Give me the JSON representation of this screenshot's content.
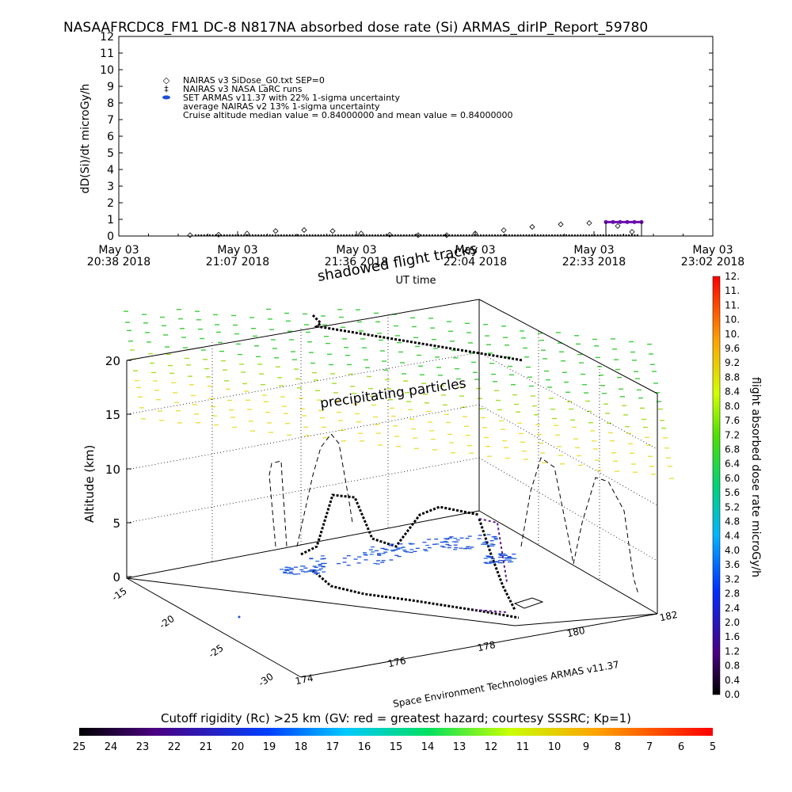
{
  "title": "NASAAFRCDC8_FM1 DC-8   N817NA absorbed dose rate (Si) ARMAS_dirIP_Report_59780",
  "chart_data": [
    {
      "type": "scatter",
      "title": "NASAAFRCDC8_FM1 DC-8   N817NA absorbed dose rate (Si) ARMAS_dirIP_Report_59780",
      "ylabel": "dD(Si)/dt microGy/h",
      "xlabel": "UT time",
      "ylim": [
        0,
        12
      ],
      "yticks": [
        "0",
        "1",
        "2",
        "3",
        "4",
        "5",
        "6",
        "7",
        "8",
        "9",
        "10",
        "11",
        "12"
      ],
      "xticks": [
        {
          "line1": "May 03",
          "line2": "20:38 2018"
        },
        {
          "line1": "May 03",
          "line2": "21:07 2018"
        },
        {
          "line1": "May 03",
          "line2": "21:36 2018"
        },
        {
          "line1": "May 03",
          "line2": "22:04 2018"
        },
        {
          "line1": "May 03",
          "line2": "22:33 2018"
        },
        {
          "line1": "May 03",
          "line2": "23:02 2018"
        }
      ],
      "legend": [
        {
          "symbol": "◇",
          "text": "NAIRAS v3 SiDose_G0.txt SEP=0"
        },
        {
          "symbol": "‡",
          "text": "NAIRAS v3 NASA LaRC runs"
        },
        {
          "symbol": "●",
          "text": "SET ARMAS v11.37 with 22% 1-sigma uncertainty"
        },
        {
          "symbol": "",
          "text": "average NAIRAS v2 13% 1-sigma uncertainty"
        },
        {
          "symbol": "",
          "text": "Cruise altitude median value = 0.84000000 and mean value = 0.84000000"
        }
      ],
      "legend_placement": "top-left",
      "series": [
        {
          "name": "NAIRAS v3 SiDose_G0.txt SEP=0",
          "x_minutes_from_start": [
            30,
            42,
            54,
            66,
            78,
            90,
            102,
            114,
            126,
            138,
            150,
            162,
            174,
            186,
            198,
            210,
            216
          ],
          "values": [
            0.05,
            0.08,
            0.15,
            0.3,
            0.36,
            0.3,
            0.15,
            0.08,
            0.05,
            0.05,
            0.15,
            0.35,
            0.55,
            0.7,
            0.78,
            0.6,
            0.25
          ]
        },
        {
          "name": "SET ARMAS v11.37 with 22% 1-sigma uncertainty",
          "x_minutes_from_start": [
            205,
            208,
            211,
            214,
            217,
            220
          ],
          "values": [
            0.84,
            0.84,
            0.84,
            0.84,
            0.84,
            0.84
          ]
        }
      ]
    },
    {
      "type": "scatter",
      "title": "",
      "zlabel": "Altitude (km)",
      "zticks": [
        "0",
        "5",
        "10",
        "15",
        "20"
      ],
      "lat_ticks": [
        "-15",
        "-20",
        "-25",
        "-30"
      ],
      "lon_ticks": [
        "174",
        "176",
        "178",
        "180",
        "182"
      ],
      "annotations": [
        "shadowed flight tracks",
        "precipitating particles"
      ],
      "colorbar": {
        "label": "flight absorbed dose rate microGy/h",
        "ticks": [
          "0.0",
          "0.4",
          "0.8",
          "1.2",
          "1.6",
          "2.0",
          "2.4",
          "2.8",
          "3.2",
          "3.6",
          "4.0",
          "4.4",
          "4.8",
          "5.2",
          "5.6",
          "6.0",
          "6.4",
          "6.8",
          "7.2",
          "7.6",
          "8.0",
          "8.4",
          "8.8",
          "9.2",
          "9.6",
          "10.",
          "10.",
          "11.",
          "11.",
          "12."
        ]
      },
      "footer": "Space Environment Technologies ARMAS v11.37"
    },
    {
      "type": "heatmap",
      "title": "Cutoff rigidity (Rc) >25 km (GV: red = greatest hazard; courtesy SSSRC; Kp=1)",
      "ticks": [
        "25",
        "24",
        "23",
        "22",
        "21",
        "20",
        "19",
        "18",
        "17",
        "16",
        "15",
        "14",
        "13",
        "12",
        "11",
        "10",
        "9",
        "8",
        "7",
        "6",
        "5"
      ]
    }
  ]
}
